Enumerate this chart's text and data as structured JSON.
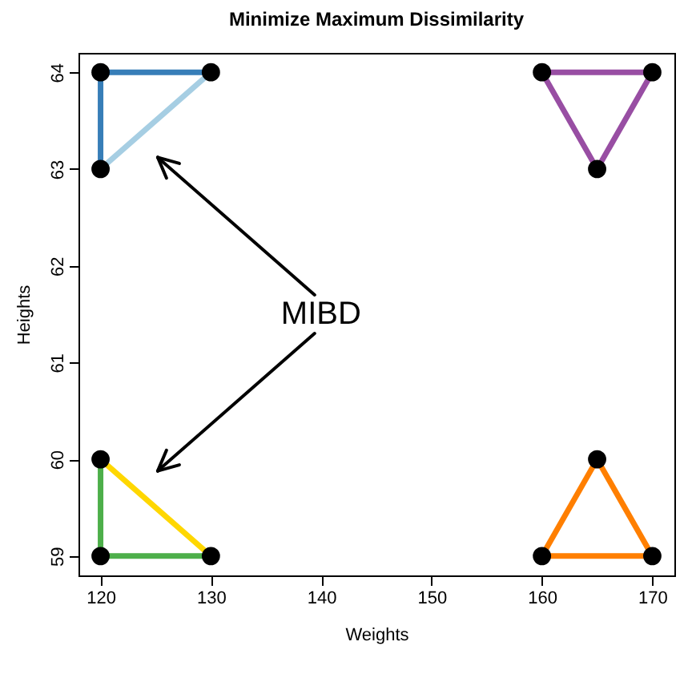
{
  "chart_data": {
    "type": "line",
    "title": "Minimize Maximum Dissimilarity",
    "xlabel": "Weights",
    "ylabel": "Heights",
    "xlim": [
      118,
      172
    ],
    "xticks": [
      120,
      130,
      140,
      150,
      160,
      170
    ],
    "ylim": [
      58.8,
      64.2
    ],
    "yticks": [
      59,
      60,
      61,
      62,
      63,
      64
    ],
    "line_style": "solid",
    "series": [
      {
        "color": "#377eb8",
        "x": [
          130,
          120,
          120
        ],
        "values": [
          64,
          64,
          63
        ]
      },
      {
        "color": "#a6cee3",
        "x": [
          120,
          130
        ],
        "values": [
          63,
          64
        ]
      },
      {
        "color": "#984ea3",
        "x": [
          160,
          170
        ],
        "values": [
          64,
          64
        ]
      },
      {
        "color": "#984ea3",
        "x": [
          160,
          165,
          170
        ],
        "values": [
          64,
          63,
          64
        ]
      },
      {
        "color": "#4daf4a",
        "x": [
          120,
          120,
          130
        ],
        "values": [
          60,
          59,
          59
        ]
      },
      {
        "color": "#ffd700",
        "x": [
          120,
          130
        ],
        "values": [
          60,
          59
        ]
      },
      {
        "color": "#ff7f00",
        "x": [
          160,
          170
        ],
        "values": [
          59,
          59
        ]
      },
      {
        "color": "#ff7f00",
        "x": [
          160,
          165,
          170
        ],
        "values": [
          59,
          60,
          59
        ]
      },
      {
        "type": "scatter",
        "marker": "circle",
        "color": "#000000",
        "x": [
          120,
          130,
          120,
          160,
          170,
          165,
          120,
          120,
          130,
          160,
          170,
          165
        ],
        "values": [
          64,
          64,
          63,
          64,
          64,
          63,
          60,
          59,
          59,
          59,
          59,
          60
        ]
      }
    ],
    "annotations": [
      "MIBD"
    ]
  }
}
